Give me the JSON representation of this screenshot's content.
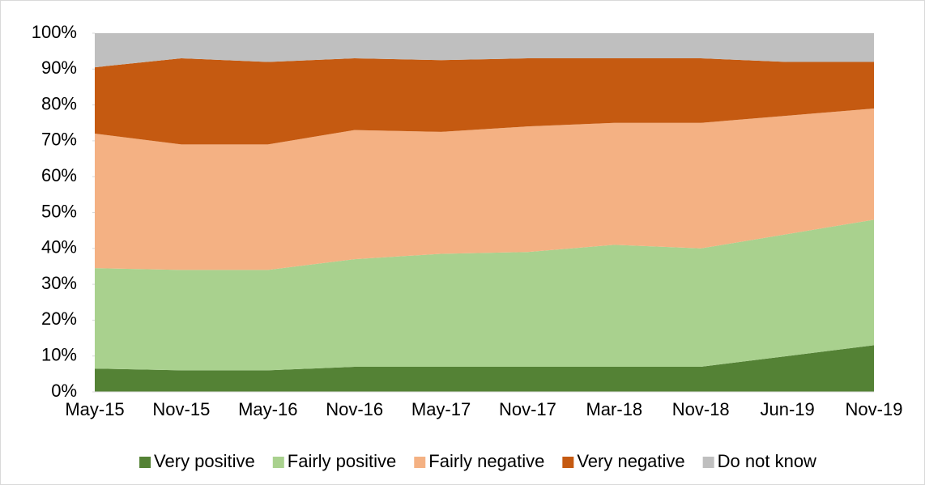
{
  "chart_data": {
    "type": "stacked_area",
    "categories": [
      "May-15",
      "Nov-15",
      "May-16",
      "Nov-16",
      "May-17",
      "Nov-17",
      "Mar-18",
      "Nov-18",
      "Jun-19",
      "Nov-19"
    ],
    "series": [
      {
        "name": "Very positive",
        "color": "#548235",
        "values": [
          6.5,
          6,
          6,
          7,
          7,
          7,
          7,
          7,
          10,
          13
        ]
      },
      {
        "name": "Fairly positive",
        "color": "#a9d18e",
        "values": [
          28,
          28,
          28,
          30,
          31.5,
          32,
          34,
          33,
          34,
          35
        ]
      },
      {
        "name": "Fairly negative",
        "color": "#f4b183",
        "values": [
          37.5,
          35,
          35,
          36,
          34,
          35,
          34,
          35,
          33,
          31
        ]
      },
      {
        "name": "Very negative",
        "color": "#c55a11",
        "values": [
          18.5,
          24,
          23,
          20,
          20,
          19,
          18,
          18,
          15,
          13
        ]
      },
      {
        "name": "Do not know",
        "color": "#bfbfbf",
        "values": [
          9.5,
          7,
          8,
          7,
          7.5,
          7,
          7,
          7,
          8,
          8
        ]
      }
    ],
    "ylim": [
      0,
      100
    ],
    "yticks": [
      {
        "value": 0,
        "label": "0%"
      },
      {
        "value": 10,
        "label": "10%"
      },
      {
        "value": 20,
        "label": "20%"
      },
      {
        "value": 30,
        "label": "30%"
      },
      {
        "value": 40,
        "label": "40%"
      },
      {
        "value": 50,
        "label": "50%"
      },
      {
        "value": 60,
        "label": "60%"
      },
      {
        "value": 70,
        "label": "70%"
      },
      {
        "value": 80,
        "label": "80%"
      },
      {
        "value": 90,
        "label": "90%"
      },
      {
        "value": 100,
        "label": "100%"
      }
    ],
    "legend": "bottom"
  }
}
